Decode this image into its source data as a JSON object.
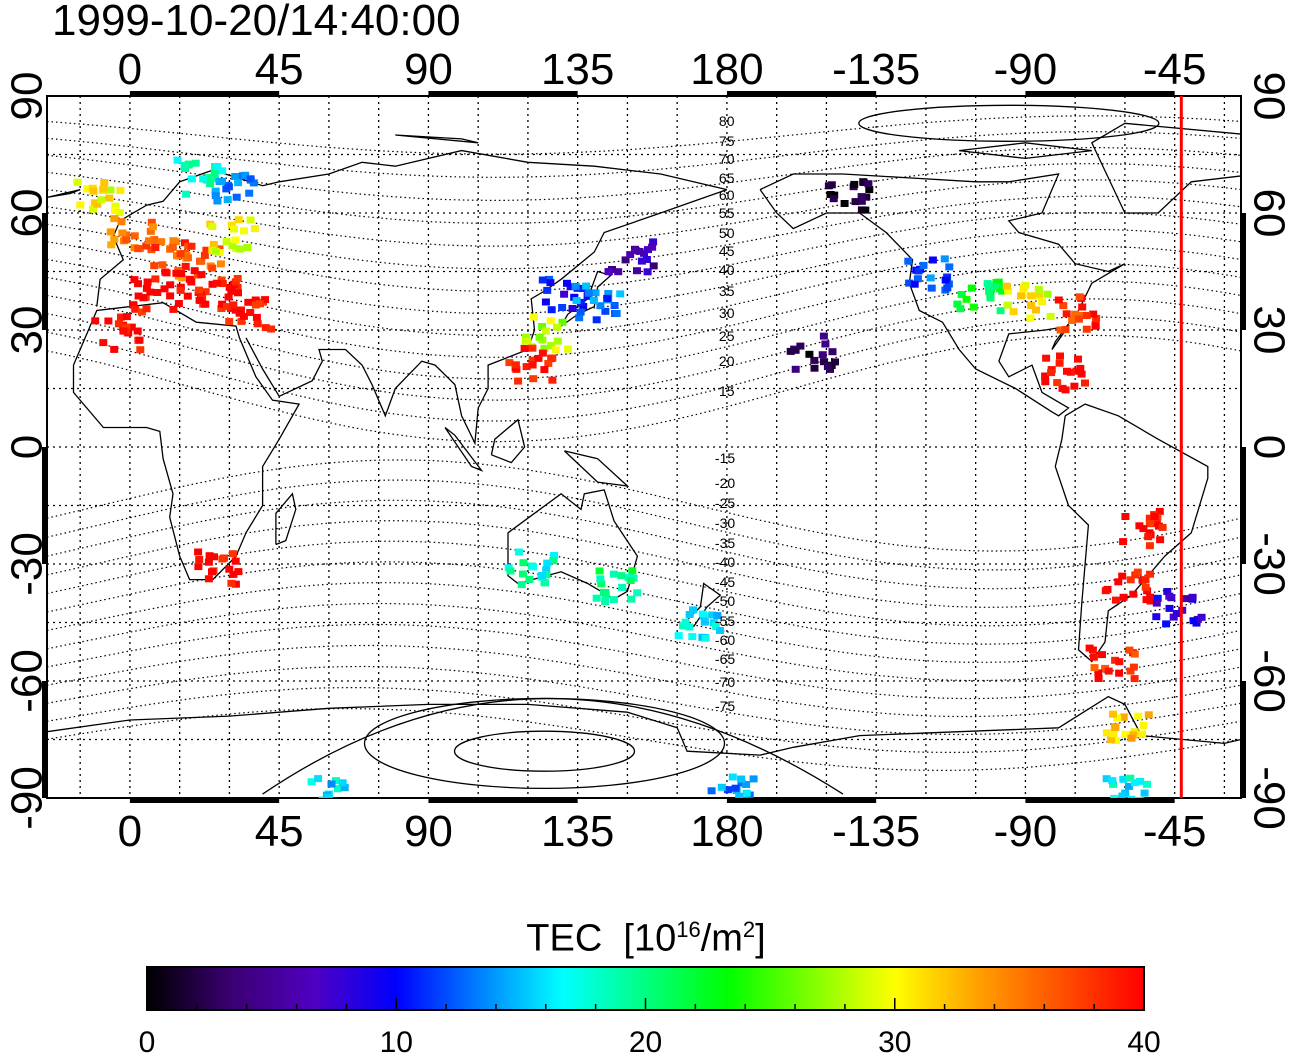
{
  "title": "1999-10-20/14:40:00",
  "colorbar": {
    "label_main": "TEC",
    "label_unit_open": "[10",
    "label_unit_exp": "16",
    "label_unit_mid": "/m",
    "label_unit_exp2": "2",
    "label_unit_close": "]",
    "ticks": [
      "0",
      "10",
      "20",
      "30",
      "40"
    ],
    "range": [
      0,
      40
    ],
    "colors": [
      "#000000",
      "#3a0070",
      "#5000c0",
      "#0000ff",
      "#0080ff",
      "#00ffff",
      "#00ff80",
      "#00ff00",
      "#80ff00",
      "#ffff00",
      "#ffa000",
      "#ff5000",
      "#ff0000"
    ]
  },
  "map": {
    "lon_ticks_top": [
      "0",
      "45",
      "90",
      "135",
      "180",
      "-135",
      "-90",
      "-45"
    ],
    "lon_ticks_bottom": [
      "0",
      "45",
      "90",
      "135",
      "180",
      "-135",
      "-90",
      "-45"
    ],
    "lat_ticks": [
      "90",
      "60",
      "30",
      "0",
      "-30",
      "-60",
      "-90"
    ],
    "lon_values": [
      0,
      45,
      90,
      135,
      180,
      225,
      270,
      315
    ],
    "lat_values": [
      90,
      60,
      30,
      0,
      -30,
      -60,
      -90
    ],
    "contour_labels_north": [
      "80",
      "75",
      "70",
      "65",
      "60",
      "55",
      "50",
      "45",
      "40",
      "35",
      "30",
      "25",
      "20",
      "15"
    ],
    "contour_labels_south": [
      "-15",
      "-20",
      "-25",
      "-30",
      "-35",
      "-40",
      "-45",
      "-50",
      "-55",
      "-60",
      "-65",
      "-70",
      "-75"
    ],
    "terminator_color": "#ff0000"
  },
  "chart_data": {
    "type": "heatmap",
    "title": "1999-10-20/14:40:00",
    "xlabel": "",
    "ylabel": "",
    "xlim": [
      -25,
      335
    ],
    "ylim": [
      -90,
      90
    ],
    "value_range": [
      0,
      40
    ],
    "terminator_lon": 317,
    "points": [
      {
        "lon": -10,
        "lat": 65,
        "v": 30
      },
      {
        "lon": 0,
        "lat": 55,
        "v": 35
      },
      {
        "lon": 10,
        "lat": 50,
        "v": 37
      },
      {
        "lon": 20,
        "lat": 48,
        "v": 36
      },
      {
        "lon": 5,
        "lat": 40,
        "v": 40
      },
      {
        "lon": 15,
        "lat": 42,
        "v": 40
      },
      {
        "lon": 25,
        "lat": 40,
        "v": 40
      },
      {
        "lon": 30,
        "lat": 55,
        "v": 30
      },
      {
        "lon": 20,
        "lat": 70,
        "v": 18
      },
      {
        "lon": 30,
        "lat": 68,
        "v": 14
      },
      {
        "lon": -5,
        "lat": 30,
        "v": 40
      },
      {
        "lon": 35,
        "lat": 35,
        "v": 40
      },
      {
        "lon": 130,
        "lat": 40,
        "v": 10
      },
      {
        "lon": 140,
        "lat": 38,
        "v": 13
      },
      {
        "lon": 125,
        "lat": 30,
        "v": 28
      },
      {
        "lon": 120,
        "lat": 22,
        "v": 40
      },
      {
        "lon": 150,
        "lat": 50,
        "v": 6
      },
      {
        "lon": 240,
        "lat": 45,
        "v": 12
      },
      {
        "lon": 255,
        "lat": 40,
        "v": 22
      },
      {
        "lon": 270,
        "lat": 38,
        "v": 30
      },
      {
        "lon": 285,
        "lat": 35,
        "v": 38
      },
      {
        "lon": 280,
        "lat": 20,
        "v": 40
      },
      {
        "lon": 305,
        "lat": -20,
        "v": 40
      },
      {
        "lon": 300,
        "lat": -35,
        "v": 40
      },
      {
        "lon": 315,
        "lat": -40,
        "v": 8
      },
      {
        "lon": 295,
        "lat": -55,
        "v": 38
      },
      {
        "lon": 300,
        "lat": -70,
        "v": 32
      },
      {
        "lon": 145,
        "lat": -35,
        "v": 20
      },
      {
        "lon": 120,
        "lat": -30,
        "v": 18
      },
      {
        "lon": 170,
        "lat": -45,
        "v": 16
      },
      {
        "lon": 215,
        "lat": 65,
        "v": 1
      },
      {
        "lon": 205,
        "lat": 25,
        "v": 2
      },
      {
        "lon": 25,
        "lat": -30,
        "v": 40
      },
      {
        "lon": 60,
        "lat": -88,
        "v": 16
      },
      {
        "lon": 180,
        "lat": -88,
        "v": 14
      },
      {
        "lon": 300,
        "lat": -88,
        "v": 17
      }
    ]
  }
}
